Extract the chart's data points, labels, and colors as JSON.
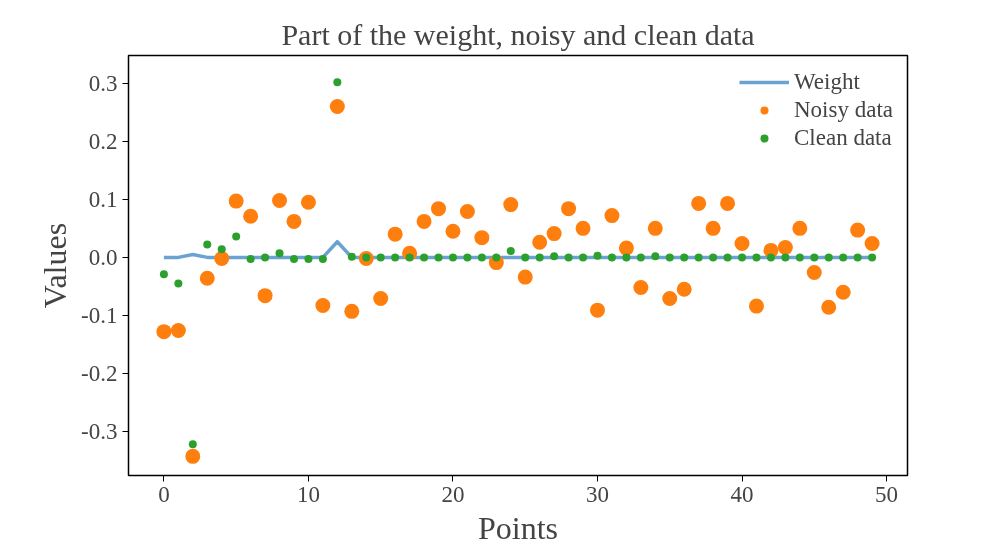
{
  "chart_data": {
    "type": "scatter",
    "title": "Part of the weight, noisy and clean data",
    "xlabel": "Points",
    "ylabel": "Values",
    "x": [
      0,
      1,
      2,
      3,
      4,
      5,
      6,
      7,
      8,
      9,
      10,
      11,
      12,
      13,
      14,
      15,
      16,
      17,
      18,
      19,
      20,
      21,
      22,
      23,
      24,
      25,
      26,
      27,
      28,
      29,
      30,
      31,
      32,
      33,
      34,
      35,
      36,
      37,
      38,
      39,
      40,
      41,
      42,
      43,
      44,
      45,
      46,
      47,
      48,
      49
    ],
    "xlim": [
      -2.45,
      51.45
    ],
    "xticks": [
      0,
      10,
      20,
      30,
      40,
      50
    ],
    "ylim": [
      -0.376,
      0.348
    ],
    "yticks": [
      {
        "value": -0.3,
        "label": "-0.3"
      },
      {
        "value": -0.2,
        "label": "-0.2"
      },
      {
        "value": -0.1,
        "label": "-0.1"
      },
      {
        "value": 0,
        "label": "0.0"
      },
      {
        "value": 0.1,
        "label": "0.1"
      },
      {
        "value": 0.2,
        "label": "0.2"
      },
      {
        "value": 0.3,
        "label": "0.3"
      }
    ],
    "grid": false,
    "legend": "top right",
    "series": [
      {
        "name": "Weight",
        "type": "line",
        "color": "#6aa3d1",
        "values": [
          0,
          0,
          0.005,
          0,
          0,
          0,
          0,
          0,
          0,
          0,
          0,
          0,
          0.027,
          0,
          0,
          0,
          0,
          0,
          0,
          0,
          0,
          0,
          0,
          0,
          0,
          0,
          0,
          0,
          0,
          0,
          0,
          0,
          0,
          0,
          0,
          0,
          0,
          0,
          0,
          0,
          0,
          0,
          0,
          0,
          0,
          0,
          0,
          0,
          0,
          0
        ]
      },
      {
        "name": "Noisy data",
        "marker": "circle",
        "color": "#ff7f0e",
        "values": [
          -0.128,
          -0.126,
          -0.343,
          -0.036,
          -0.002,
          0.097,
          0.071,
          -0.066,
          0.098,
          0.062,
          0.095,
          -0.083,
          0.26,
          -0.093,
          -0.002,
          -0.071,
          0.04,
          0.007,
          0.062,
          0.084,
          0.045,
          0.079,
          0.034,
          -0.009,
          0.091,
          -0.034,
          0.026,
          0.041,
          0.084,
          0.05,
          -0.091,
          0.072,
          0.016,
          -0.052,
          0.05,
          -0.071,
          -0.055,
          0.093,
          0.05,
          0.093,
          0.024,
          -0.084,
          0.012,
          0.017,
          0.05,
          -0.026,
          -0.086,
          -0.06,
          0.047,
          0.024
        ]
      },
      {
        "name": "Clean data",
        "marker": "circle",
        "color": "#2ca02c",
        "values": [
          -0.029,
          -0.045,
          -0.322,
          0.022,
          0.014,
          0.036,
          -0.003,
          0,
          0.007,
          -0.003,
          -0.003,
          -0.003,
          0.302,
          0.001,
          0,
          0,
          0,
          0,
          0,
          0,
          0,
          0,
          0,
          0,
          0.011,
          0,
          0,
          0.002,
          0,
          0,
          0.003,
          0,
          0,
          0,
          0.002,
          0,
          0,
          0,
          0,
          0,
          0,
          0,
          0,
          0,
          0,
          0,
          0,
          0,
          0,
          0
        ]
      }
    ]
  }
}
